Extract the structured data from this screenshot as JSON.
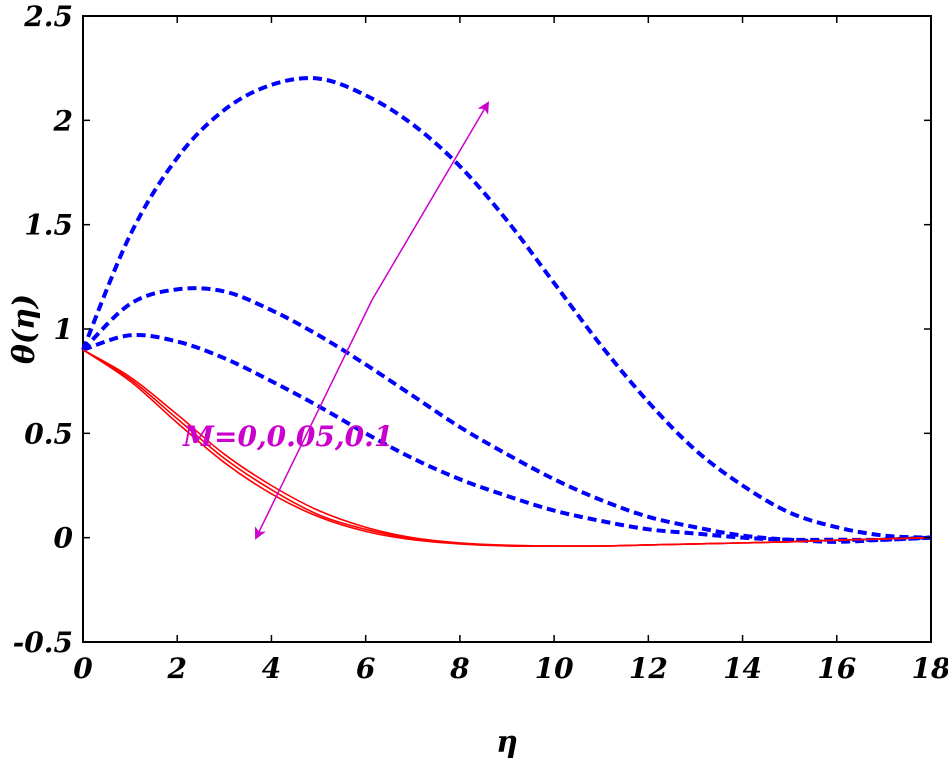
{
  "chart_data": {
    "type": "line",
    "title": "",
    "xlabel": "η",
    "ylabel": "θ(η)",
    "xlim": [
      0,
      18
    ],
    "ylim": [
      -0.5,
      2.5
    ],
    "xticks": [
      0,
      2,
      4,
      6,
      8,
      10,
      12,
      14,
      16,
      18
    ],
    "yticks": [
      -0.5,
      0,
      0.5,
      1,
      1.5,
      2,
      2.5
    ],
    "xtick_labels": [
      "0",
      "2",
      "4",
      "6",
      "8",
      "10",
      "12",
      "14",
      "16",
      "18"
    ],
    "ytick_labels": [
      "-0.5",
      "0",
      "0.5",
      "1",
      "1.5",
      "2",
      "2.5"
    ],
    "grid": false,
    "annotation": {
      "text": "M=0,0.05,0.1",
      "color": "#cc00cc"
    },
    "colors": {
      "solid": "#ff0000",
      "dashed": "#0000ff",
      "arrow": "#cc00cc"
    },
    "series": [
      {
        "style": "dashed",
        "color": "#0000ff",
        "x": [
          0,
          1,
          2,
          3,
          4,
          5,
          6,
          7,
          8,
          9,
          10,
          11,
          12,
          13,
          14,
          15,
          16,
          17,
          18
        ],
        "y": [
          0.9,
          0.97,
          0.94,
          0.86,
          0.75,
          0.63,
          0.5,
          0.38,
          0.28,
          0.2,
          0.13,
          0.08,
          0.04,
          0.02,
          0.0,
          -0.01,
          -0.01,
          -0.01,
          0.0
        ]
      },
      {
        "style": "dashed",
        "color": "#0000ff",
        "x": [
          0,
          1,
          2,
          3,
          4,
          5,
          6,
          7,
          8,
          9,
          10,
          11,
          12,
          13,
          14,
          15,
          16,
          17,
          18
        ],
        "y": [
          0.9,
          1.12,
          1.19,
          1.18,
          1.09,
          0.97,
          0.83,
          0.68,
          0.53,
          0.4,
          0.28,
          0.18,
          0.1,
          0.05,
          0.01,
          -0.01,
          -0.02,
          -0.01,
          0.0
        ]
      },
      {
        "style": "dashed",
        "color": "#0000ff",
        "x": [
          0,
          1,
          2,
          3,
          4,
          5,
          6,
          7,
          8,
          9,
          10,
          11,
          12,
          13,
          14,
          15,
          16,
          17,
          18
        ],
        "y": [
          0.9,
          1.45,
          1.82,
          2.05,
          2.17,
          2.2,
          2.12,
          1.98,
          1.78,
          1.52,
          1.22,
          0.92,
          0.65,
          0.42,
          0.25,
          0.12,
          0.05,
          0.01,
          0.0
        ]
      },
      {
        "style": "solid",
        "color": "#ff0000",
        "x": [
          0,
          1,
          2,
          3,
          4,
          5,
          6,
          7,
          8,
          9,
          10,
          11,
          12,
          13,
          14,
          15,
          16,
          17,
          18
        ],
        "y": [
          0.9,
          0.75,
          0.55,
          0.36,
          0.21,
          0.1,
          0.03,
          -0.01,
          -0.03,
          -0.04,
          -0.04,
          -0.04,
          -0.035,
          -0.03,
          -0.025,
          -0.02,
          -0.012,
          -0.006,
          0.0
        ]
      },
      {
        "style": "solid",
        "color": "#ff0000",
        "x": [
          0,
          1,
          2,
          3,
          4,
          5,
          6,
          7,
          8,
          9,
          10,
          11,
          12,
          13,
          14,
          15,
          16,
          17,
          18
        ],
        "y": [
          0.9,
          0.76,
          0.57,
          0.38,
          0.23,
          0.11,
          0.04,
          -0.005,
          -0.028,
          -0.038,
          -0.04,
          -0.04,
          -0.035,
          -0.03,
          -0.025,
          -0.02,
          -0.012,
          -0.006,
          0.0
        ]
      },
      {
        "style": "solid",
        "color": "#ff0000",
        "x": [
          0,
          1,
          2,
          3,
          4,
          5,
          6,
          7,
          8,
          9,
          10,
          11,
          12,
          13,
          14,
          15,
          16,
          17,
          18
        ],
        "y": [
          0.9,
          0.77,
          0.59,
          0.4,
          0.25,
          0.13,
          0.05,
          0.0,
          -0.025,
          -0.036,
          -0.04,
          -0.04,
          -0.035,
          -0.03,
          -0.025,
          -0.02,
          -0.012,
          -0.006,
          0.0
        ]
      }
    ]
  }
}
